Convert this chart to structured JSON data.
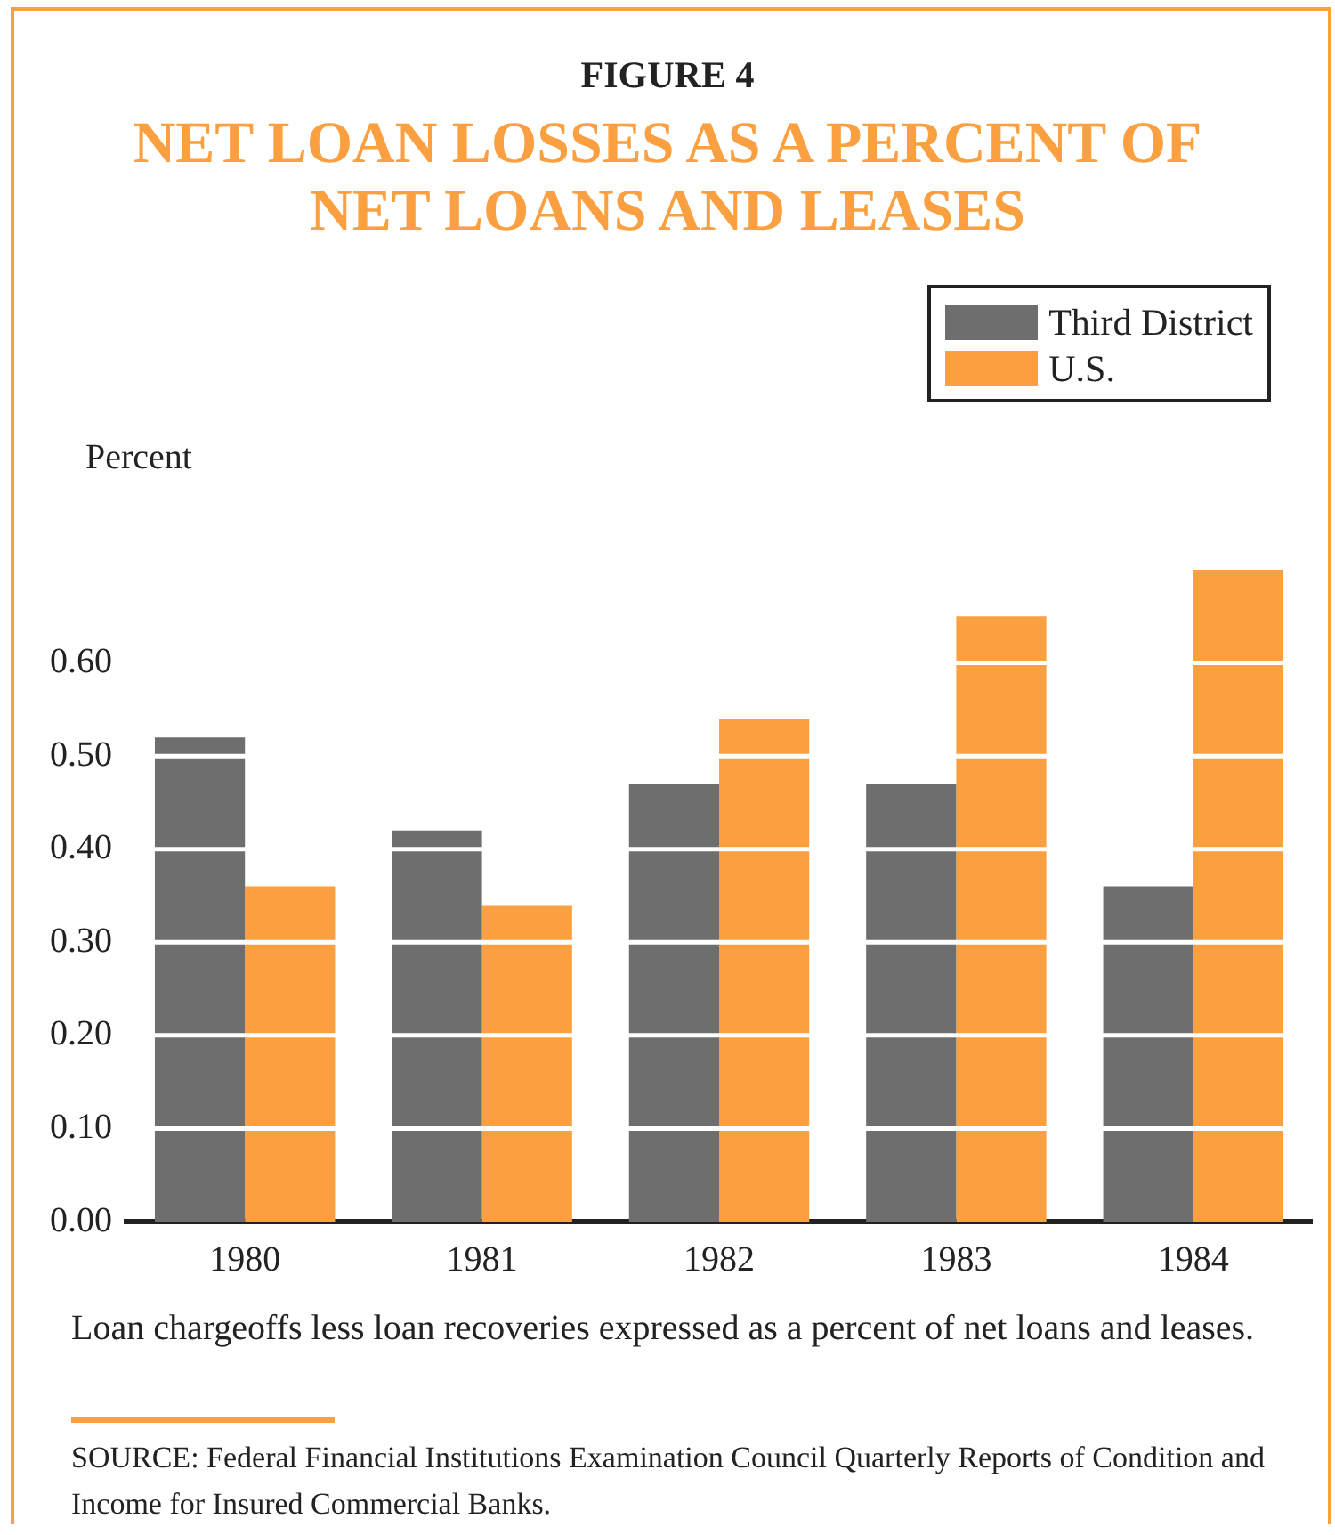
{
  "chart_data": {
    "type": "bar",
    "title": "FIGURE 4",
    "subtitle": "NET LOAN LOSSES AS A PERCENT OF NET LOANS AND LEASES",
    "ylabel": "Percent",
    "categories": [
      "1980",
      "1981",
      "1982",
      "1983",
      "1984"
    ],
    "series": [
      {
        "name": "Third District",
        "color": "#6e6e6e",
        "values": [
          0.52,
          0.42,
          0.47,
          0.47,
          0.36
        ]
      },
      {
        "name": "U.S.",
        "color": "#fba040",
        "values": [
          0.36,
          0.34,
          0.54,
          0.65,
          0.7
        ]
      }
    ],
    "ylim": [
      0,
      0.7
    ],
    "yticks": [
      {
        "value": 0,
        "label": "0.00"
      },
      {
        "value": 0.1,
        "label": "0.10"
      },
      {
        "value": 0.2,
        "label": "0.20"
      },
      {
        "value": 0.3,
        "label": "0.30"
      },
      {
        "value": 0.4,
        "label": "0.40"
      },
      {
        "value": 0.5,
        "label": "0.50"
      },
      {
        "value": 0.6,
        "label": "0.60"
      }
    ],
    "grid": "y",
    "legend": "top right",
    "annotations": [
      "Loan chargeoffs less loan recoveries expressed as a percent of net loans and leases.",
      "SOURCE: Federal Financial Institutions Examination Council Quarterly Reports of Condition and Income for Insured Commercial Banks."
    ]
  }
}
